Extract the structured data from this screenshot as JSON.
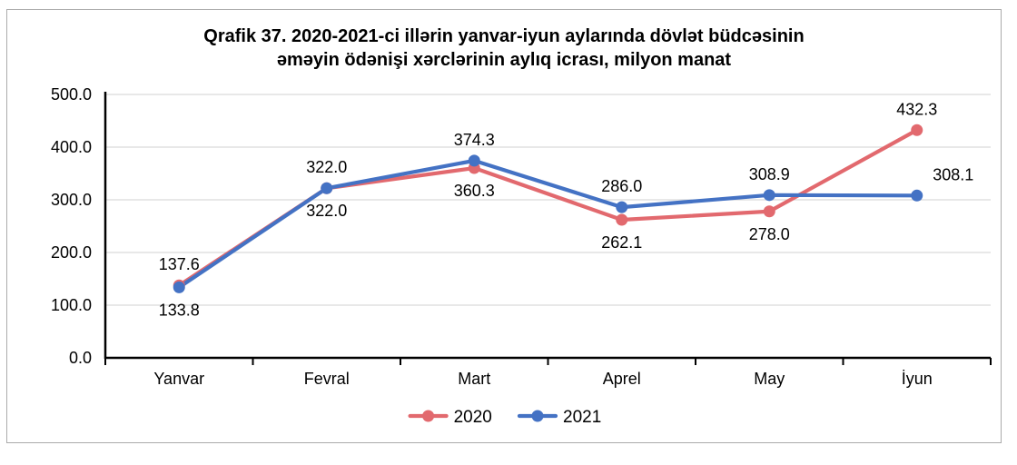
{
  "chart_data": {
    "type": "line",
    "title_lines": [
      "Qrafik 37. 2020-2021-ci illərin yanvar-iyun aylarında dövlət büdcəsinin",
      "əməyin ödənişi xərclərinin aylıq icrası, milyon manat"
    ],
    "categories": [
      "Yanvar",
      "Fevral",
      "Mart",
      "Aprel",
      "May",
      "İyun"
    ],
    "series": [
      {
        "name": "2020",
        "color": "#e2696e",
        "values": [
          137.6,
          322.0,
          360.3,
          262.1,
          278.0,
          432.3
        ],
        "label_positions": [
          "above",
          "above",
          "below",
          "below",
          "below",
          "above"
        ]
      },
      {
        "name": "2021",
        "color": "#4472c4",
        "values": [
          133.8,
          322.0,
          374.3,
          286.0,
          308.9,
          308.1
        ],
        "label_positions": [
          "below",
          "below",
          "above",
          "above",
          "above",
          "above-right"
        ]
      }
    ],
    "ylim": [
      0,
      500
    ],
    "y_tick_step": 100,
    "y_tick_decimals": 1,
    "value_label_decimals": 1,
    "grid": true,
    "legend_position": "bottom",
    "axis_color": "#000000",
    "grid_color": "#d9d9d9",
    "box_border_color": "#ababab",
    "label_color": "#000000"
  }
}
